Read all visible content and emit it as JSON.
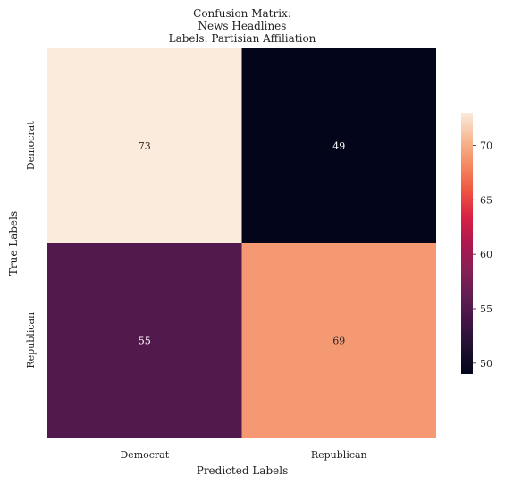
{
  "chart_data": {
    "type": "heatmap",
    "title": [
      "Confusion Matrix:",
      "News Headlines",
      "Labels: Partisian Affiliation"
    ],
    "xlabel": "Predicted Labels",
    "ylabel": "True Labels",
    "x_categories": [
      "Democrat",
      "Republican"
    ],
    "y_categories": [
      "Democrat",
      "Republican"
    ],
    "values": [
      [
        73,
        49
      ],
      [
        55,
        69
      ]
    ],
    "colorbar": {
      "range": [
        49,
        73
      ],
      "ticks": [
        50,
        55,
        60,
        65,
        70
      ],
      "colormap": "rocket"
    },
    "grid": false
  }
}
